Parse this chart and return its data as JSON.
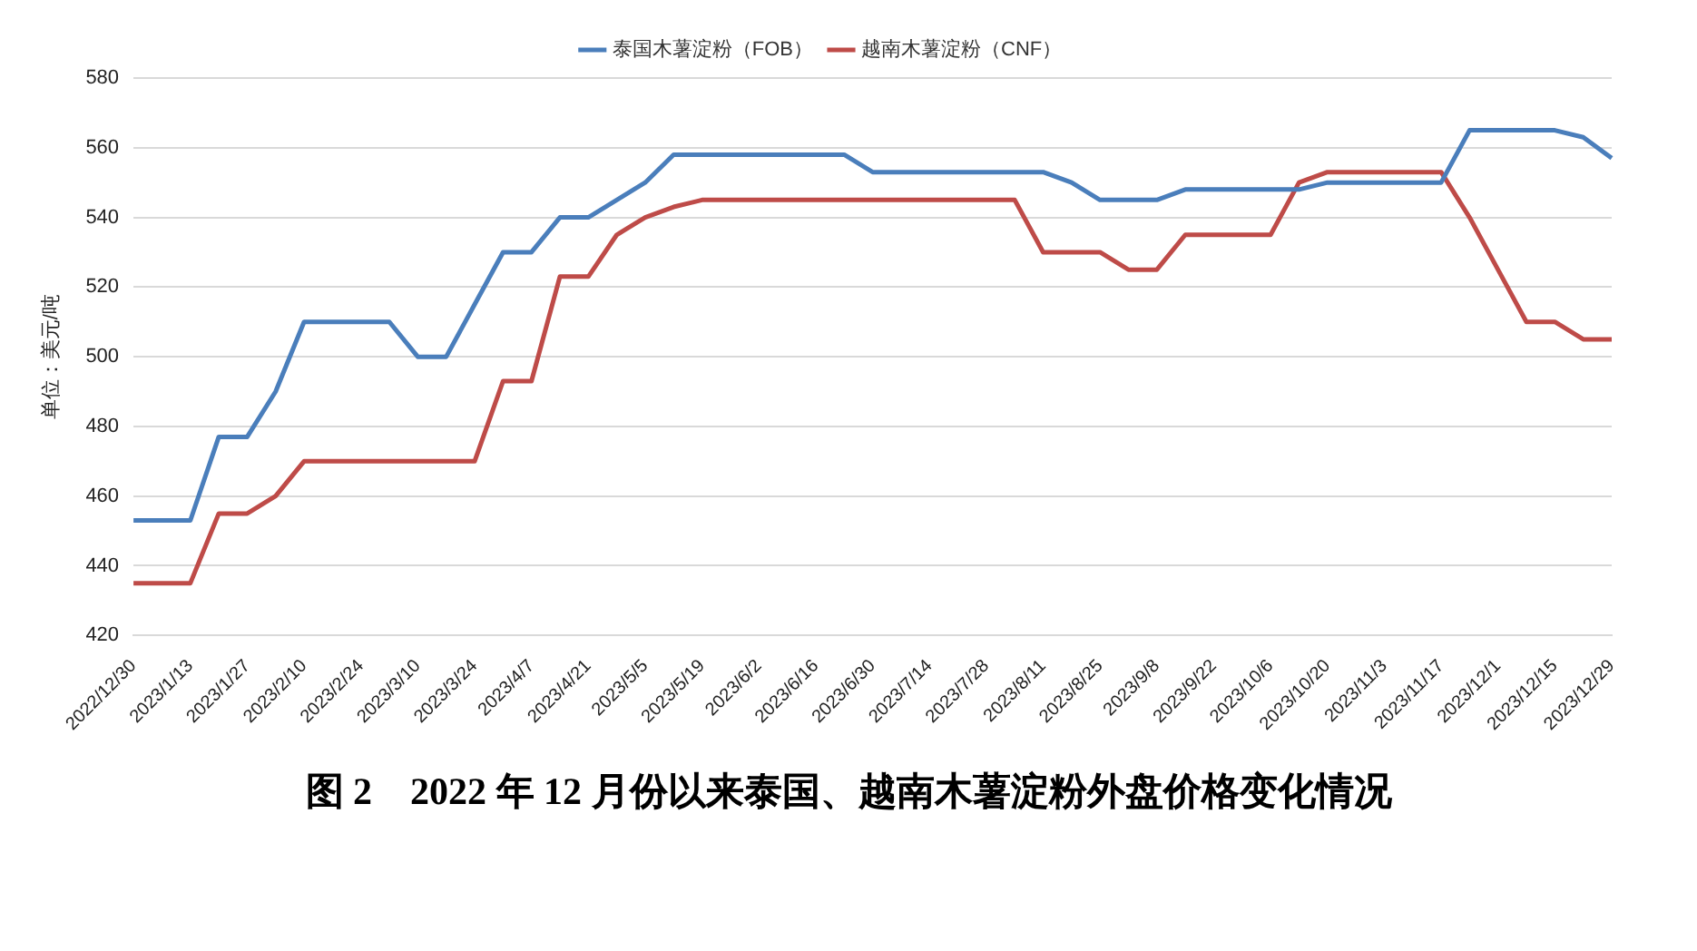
{
  "chart_data": {
    "type": "line",
    "title": "图 2    2022 年 12 月份以来泰国、越南木薯淀粉外盘价格变化情况",
    "ylabel": "单位：美元/吨",
    "categories": [
      "2022/12/30",
      null,
      "2023/1/13",
      null,
      "2023/1/27",
      null,
      "2023/2/10",
      null,
      "2023/2/24",
      null,
      "2023/3/10",
      null,
      "2023/3/24",
      null,
      "2023/4/7",
      null,
      "2023/4/21",
      null,
      "2023/5/5",
      null,
      "2023/5/19",
      null,
      "2023/6/2",
      null,
      "2023/6/16",
      null,
      "2023/6/30",
      null,
      "2023/7/14",
      null,
      "2023/7/28",
      null,
      "2023/8/11",
      null,
      "2023/8/25",
      null,
      "2023/9/8",
      null,
      "2023/9/22",
      null,
      "2023/10/6",
      null,
      "2023/10/20",
      null,
      "2023/11/3",
      null,
      "2023/11/17",
      null,
      "2023/12/1",
      null,
      "2023/12/15",
      null,
      "2023/12/29"
    ],
    "series": [
      {
        "name": "泰国木薯淀粉（FOB）",
        "color": "#4a7ebb",
        "values": [
          453,
          453,
          453,
          477,
          477,
          490,
          510,
          510,
          510,
          510,
          500,
          500,
          515,
          530,
          530,
          540,
          540,
          545,
          550,
          558,
          558,
          558,
          558,
          558,
          558,
          558,
          553,
          553,
          553,
          553,
          553,
          553,
          553,
          550,
          545,
          545,
          545,
          548,
          548,
          548,
          548,
          548,
          550,
          550,
          550,
          550,
          550,
          565,
          565,
          565,
          565,
          563,
          557
        ]
      },
      {
        "name": "越南木薯淀粉（CNF）",
        "color": "#be4b48",
        "values": [
          435,
          435,
          435,
          455,
          455,
          460,
          470,
          470,
          470,
          470,
          470,
          470,
          470,
          493,
          493,
          523,
          523,
          535,
          540,
          543,
          545,
          545,
          545,
          545,
          545,
          545,
          545,
          545,
          545,
          545,
          545,
          545,
          530,
          530,
          530,
          525,
          525,
          535,
          535,
          535,
          535,
          550,
          553,
          553,
          553,
          553,
          553,
          540,
          525,
          510,
          510,
          505,
          505
        ]
      }
    ],
    "ylim": [
      420,
      580
    ],
    "yticks": [
      420,
      440,
      460,
      480,
      500,
      520,
      540,
      560,
      580
    ],
    "grid": "y",
    "legend": "top",
    "marker": "none",
    "line_style": "solid"
  }
}
